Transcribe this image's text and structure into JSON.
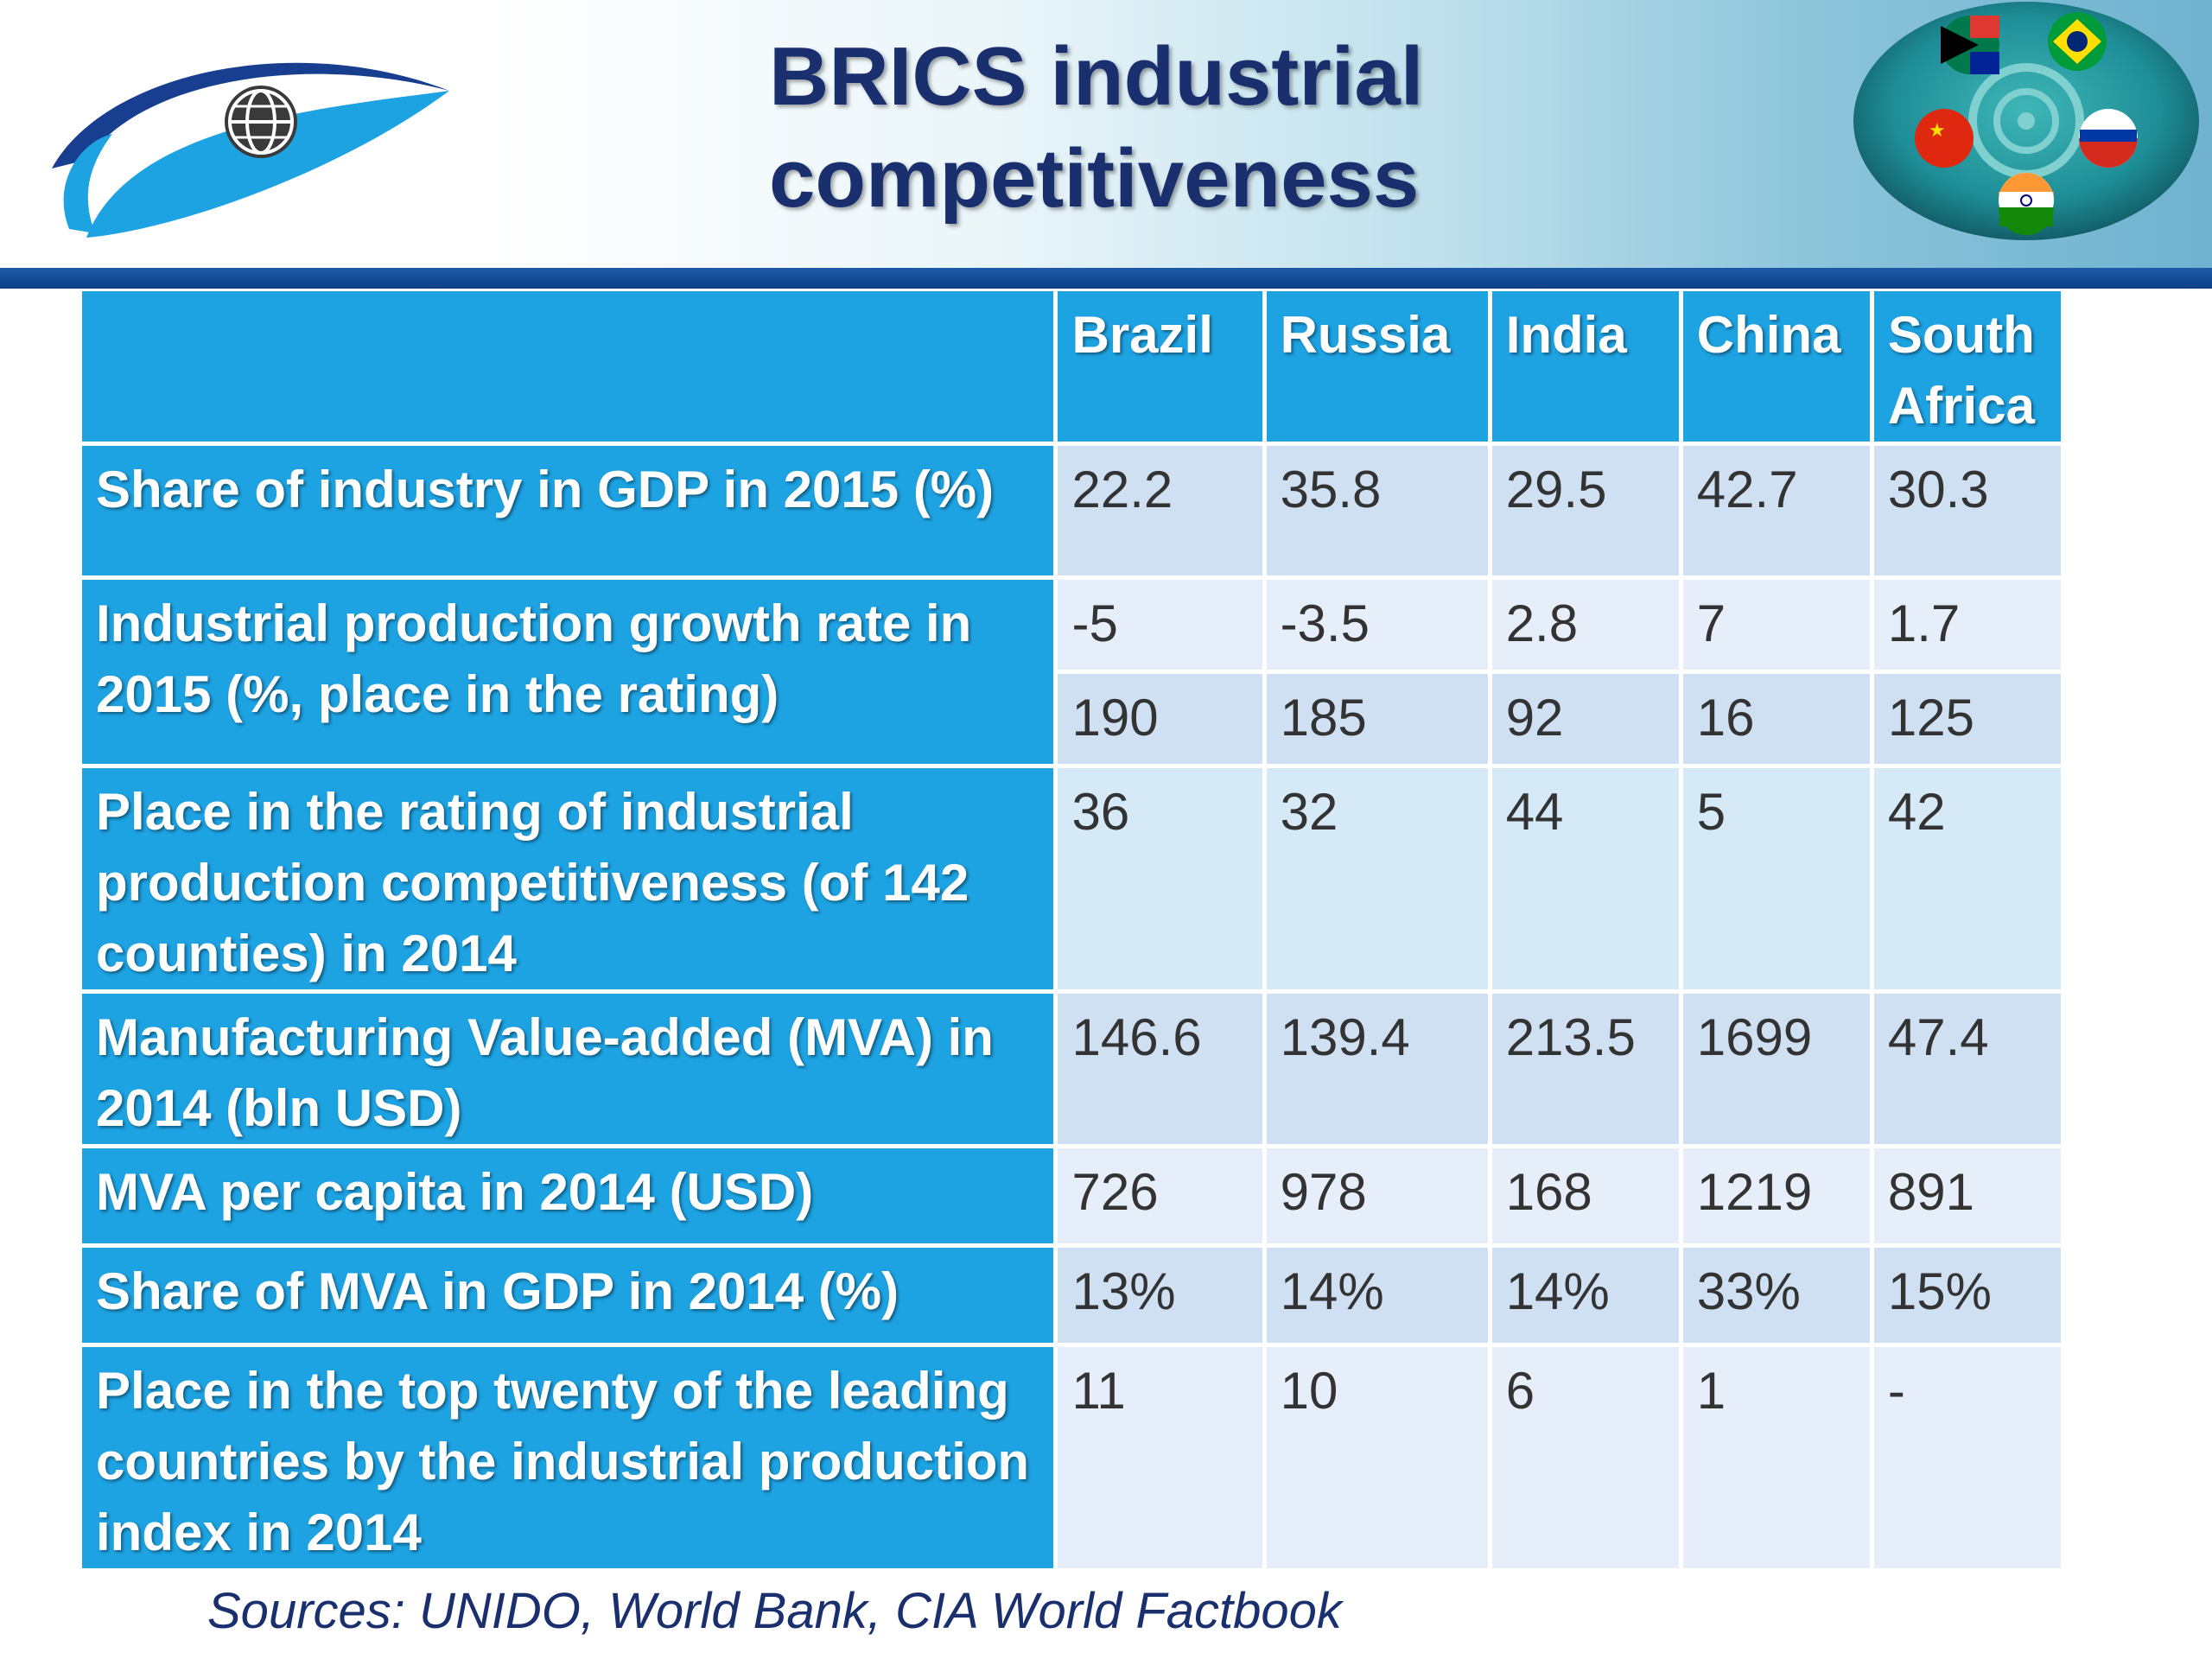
{
  "title": "BRICS industrial competitiveness",
  "table": {
    "columns": [
      "Brazil",
      "Russia",
      "India",
      "China",
      "South Africa"
    ],
    "rows": [
      {
        "label": "Share of industry in GDP in 2015 (%)",
        "values": [
          "22.2",
          "35.8",
          "29.5",
          "42.7",
          "30.3"
        ]
      },
      {
        "label": "Industrial production growth rate in 2015 (%, place in the rating)",
        "values": [
          "-5",
          "-3.5",
          "2.8",
          "7",
          "1.7"
        ],
        "values2": [
          "190",
          "185",
          "92",
          "16",
          "125"
        ]
      },
      {
        "label": "Place in the rating of industrial production competitiveness (of 142 counties) in 2014",
        "values": [
          "36",
          "32",
          "44",
          "5",
          "42"
        ]
      },
      {
        "label": "Manufacturing Value-added (MVA) in 2014 (bln USD)",
        "values": [
          "146.6",
          "139.4",
          "213.5",
          "1699",
          "47.4"
        ]
      },
      {
        "label": "MVA per capita in 2014 (USD)",
        "values": [
          "726",
          "978",
          "168",
          "1219",
          "891"
        ]
      },
      {
        "label": "Share of MVA in GDP in 2014 (%)",
        "values": [
          "13%",
          "14%",
          "14%",
          "33%",
          "15%"
        ]
      },
      {
        "label": "Place in the top twenty of the leading countries by the industrial production index in 2014",
        "values": [
          "11",
          "10",
          "6",
          "1",
          "-"
        ]
      }
    ]
  },
  "sources": "Sources: UNIDO, World Bank, CIA World Factbook",
  "icons": {
    "logo": "eye-globe-logo",
    "emblem": "brics-flags-emblem"
  }
}
